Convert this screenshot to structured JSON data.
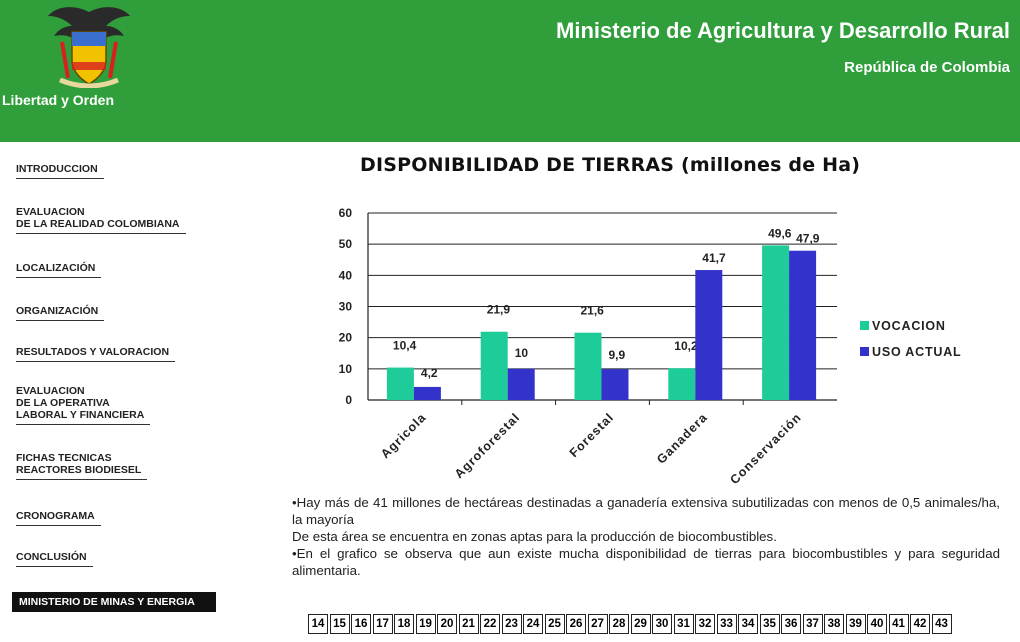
{
  "header": {
    "ministry": "Ministerio de Agricultura y Desarrollo Rural",
    "republic": "República de Colombia",
    "motto": "Libertad y Orden",
    "colors": {
      "background": "#2f9e3b",
      "text": "#ffffff"
    },
    "crest_icon": "coat-of-arms-icon"
  },
  "nav": [
    {
      "lines": [
        "INTRODUCCION"
      ]
    },
    {
      "lines": [
        "EVALUACION",
        "DE LA REALIDAD COLOMBIANA"
      ]
    },
    {
      "lines": [
        "LOCALIZACIÓN"
      ]
    },
    {
      "lines": [
        "ORGANIZACIÓN"
      ]
    },
    {
      "lines": [
        "RESULTADOS Y VALORACION"
      ]
    },
    {
      "lines": [
        "EVALUACION",
        "DE LA OPERATIVA",
        "LABORAL Y FINANCIERA"
      ]
    },
    {
      "lines": [
        "FICHAS TECNICAS",
        "REACTORES BIODIESEL"
      ]
    },
    {
      "lines": [
        "CRONOGRAMA"
      ]
    },
    {
      "lines": [
        "CONCLUSIÓN"
      ]
    }
  ],
  "nav_highlight": "MINISTERIO DE MINAS Y ENERGIA",
  "chart_title": "DISPONIBILIDAD DE TIERRAS (millones de Ha)",
  "chart_data": {
    "type": "bar",
    "title": "DISPONIBILIDAD DE TIERRAS (millones de Ha)",
    "categories": [
      "Agricola",
      "Agroforestal",
      "Forestal",
      "Ganadera",
      "Conservación"
    ],
    "series": [
      {
        "name": "VOCACION",
        "values": [
          10.4,
          21.9,
          21.6,
          10.2,
          49.6
        ],
        "labels": [
          "10,4",
          "21,9",
          "21,6",
          "10,2",
          "49,6"
        ],
        "color": "#1ecc9a"
      },
      {
        "name": "USO ACTUAL",
        "values": [
          4.2,
          10,
          9.9,
          41.7,
          47.9
        ],
        "labels": [
          "4,2",
          "10",
          "9,9",
          "41,7",
          "47,9"
        ],
        "color": "#3333cc"
      }
    ],
    "ylim": [
      0,
      60
    ],
    "yticks": [
      "0",
      "10",
      "20",
      "30",
      "40",
      "50",
      "60"
    ],
    "grid": true,
    "legend": "right",
    "xlabel": "",
    "ylabel": ""
  },
  "bullets": [
    "•Hay más de 41 millones de hectáreas destinadas a ganadería extensiva subutilizadas con menos de 0,5 animales/ha, la mayoría",
    "De esta área se encuentra en zonas aptas para la producción de biocombustibles.",
    "•En el grafico se observa que aun existe mucha disponibilidad de tierras para biocombustibles y para seguridad alimentaria."
  ],
  "pages": [
    "14",
    "15",
    "16",
    "17",
    "18",
    "19",
    "20",
    "21",
    "22",
    "23",
    "24",
    "25",
    "26",
    "27",
    "28",
    "29",
    "30",
    "31",
    "32",
    "33",
    "34",
    "35",
    "36",
    "37",
    "38",
    "39",
    "40",
    "41",
    "42",
    "43"
  ]
}
